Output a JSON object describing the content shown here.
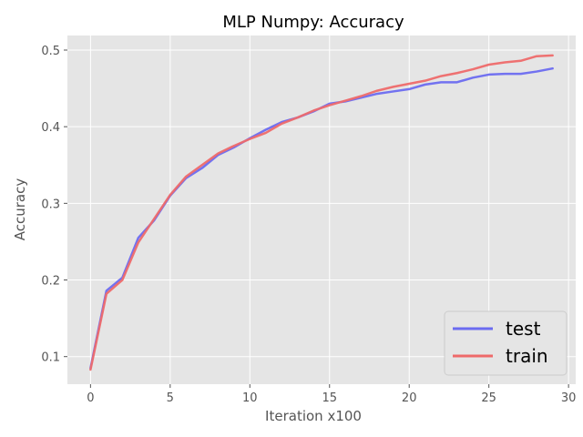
{
  "chart_data": {
    "type": "line",
    "title": "MLP Numpy: Accuracy",
    "xlabel": "Iteration x100",
    "ylabel": "Accuracy",
    "xlim": [
      -1.45,
      30.45
    ],
    "ylim": [
      0.064,
      0.519
    ],
    "xticks": [
      0,
      5,
      10,
      15,
      20,
      25,
      30
    ],
    "yticks": [
      0.1,
      0.2,
      0.3,
      0.4,
      0.5
    ],
    "grid": true,
    "legend_position": "lower-right",
    "x": [
      0,
      1,
      2,
      3,
      4,
      5,
      6,
      7,
      8,
      9,
      10,
      11,
      12,
      13,
      14,
      15,
      16,
      17,
      18,
      19,
      20,
      21,
      22,
      23,
      24,
      25,
      26,
      27,
      28,
      29
    ],
    "series": [
      {
        "name": "test",
        "color": "#6b6bf0",
        "values": [
          0.085,
          0.186,
          0.203,
          0.255,
          0.278,
          0.31,
          0.333,
          0.346,
          0.363,
          0.373,
          0.385,
          0.396,
          0.406,
          0.412,
          0.42,
          0.43,
          0.433,
          0.438,
          0.443,
          0.446,
          0.449,
          0.455,
          0.458,
          0.458,
          0.464,
          0.468,
          0.469,
          0.469,
          0.472,
          0.476
        ]
      },
      {
        "name": "train",
        "color": "#ee6a6a",
        "values": [
          0.083,
          0.182,
          0.2,
          0.249,
          0.28,
          0.311,
          0.335,
          0.35,
          0.365,
          0.375,
          0.384,
          0.392,
          0.404,
          0.412,
          0.421,
          0.428,
          0.434,
          0.44,
          0.447,
          0.452,
          0.456,
          0.46,
          0.466,
          0.47,
          0.475,
          0.481,
          0.484,
          0.486,
          0.492,
          0.493
        ]
      }
    ]
  }
}
